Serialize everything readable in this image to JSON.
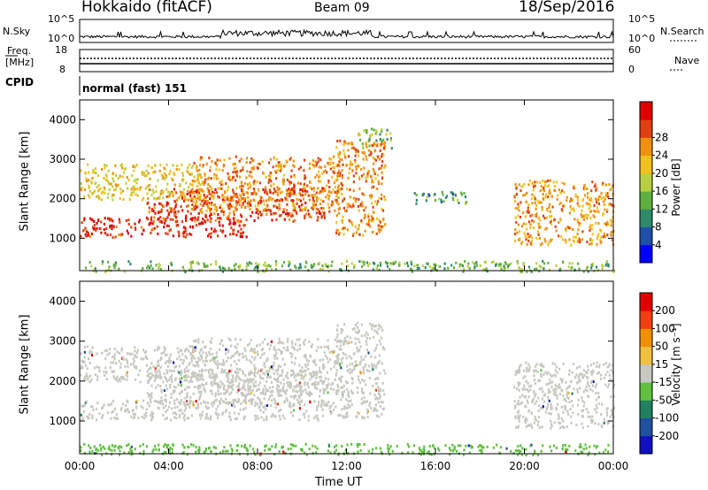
{
  "header": {
    "station": "Hokkaido (fitACF)",
    "beam": "Beam 09",
    "date": "18/Sep/2016"
  },
  "status_panels": {
    "nsky_label": "N.Sky",
    "nsearch_label": "N.Search",
    "nsky_ticks": [
      "10^5",
      "10^0"
    ],
    "nsky_right_ticks": [
      "10^5",
      "10^0"
    ],
    "freq_label_1": "Freq.",
    "freq_label_2": "[MHz]",
    "freq_ticks": [
      "18",
      "8"
    ],
    "nave_label": "Nave",
    "nave_ticks": [
      "60",
      "0"
    ],
    "cpid_label": "CPID",
    "cpid_value": "normal (fast) 151"
  },
  "colorbars": {
    "power": {
      "label": "Power [dB]",
      "ticks": [
        "4",
        "8",
        "12",
        "16",
        "20",
        "24",
        "28"
      ],
      "colors": [
        "#0000ff",
        "#1f4fa8",
        "#2e8a6a",
        "#60b040",
        "#b8d040",
        "#f0c020",
        "#f09010",
        "#e04010",
        "#e00000"
      ]
    },
    "velocity": {
      "label": "Velocity [m s⁻¹]",
      "ticks": [
        "200",
        "100",
        "50",
        "15",
        "-15",
        "-50",
        "-100",
        "-200"
      ],
      "colors": [
        "#1010c0",
        "#2050a0",
        "#208060",
        "#60c040",
        "#c8c8c0",
        "#f0c040",
        "#f09000",
        "#f04010",
        "#e00000"
      ]
    }
  },
  "chart_data": [
    {
      "type": "heatmap",
      "name": "power",
      "xlabel": "",
      "ylabel": "Slant Range [km]",
      "x_ticks": [
        "00:00",
        "04:00",
        "08:00",
        "12:00",
        "16:00",
        "20:00",
        "00:00"
      ],
      "y_ticks": [
        1000,
        2000,
        3000,
        4000
      ],
      "xlim": [
        0,
        24
      ],
      "ylim": [
        180,
        4500
      ],
      "colorbar_range": [
        0,
        30
      ],
      "regions": [
        {
          "t0": 0.0,
          "t1": 7.5,
          "r0": 1050,
          "r1": 1550,
          "level": 27
        },
        {
          "t0": 3.0,
          "t1": 11.0,
          "r0": 1450,
          "r1": 2300,
          "level": 25
        },
        {
          "t0": 5.0,
          "t1": 11.8,
          "r0": 1700,
          "r1": 3100,
          "level": 22
        },
        {
          "t0": 0.0,
          "t1": 5.5,
          "r0": 2000,
          "r1": 2900,
          "level": 18
        },
        {
          "t0": 11.5,
          "t1": 13.7,
          "r0": 1100,
          "r1": 3500,
          "level": 22
        },
        {
          "t0": 12.5,
          "t1": 14.0,
          "r0": 3300,
          "r1": 3800,
          "level": 13
        },
        {
          "t0": 19.5,
          "t1": 24.0,
          "r0": 850,
          "r1": 2500,
          "level": 21
        },
        {
          "t0": 15.0,
          "t1": 17.5,
          "r0": 1900,
          "r1": 2200,
          "level": 10
        },
        {
          "t0": 0.0,
          "t1": 24.0,
          "r0": 180,
          "r1": 450,
          "level": 12
        }
      ]
    },
    {
      "type": "heatmap",
      "name": "velocity",
      "xlabel": "Time UT",
      "ylabel": "Slant Range [km]",
      "x_ticks": [
        "00:00",
        "04:00",
        "08:00",
        "12:00",
        "16:00",
        "20:00",
        "00:00"
      ],
      "y_ticks": [
        1000,
        2000,
        3000,
        4000
      ],
      "xlim": [
        0,
        24
      ],
      "ylim": [
        180,
        4500
      ],
      "colorbar_range": [
        -200,
        200
      ],
      "regions": [
        {
          "t0": 0.0,
          "t1": 11.5,
          "r0": 1050,
          "r1": 1550,
          "level": 0
        },
        {
          "t0": 3.0,
          "t1": 11.0,
          "r0": 1450,
          "r1": 2300,
          "level": -5
        },
        {
          "t0": 5.0,
          "t1": 11.8,
          "r0": 1700,
          "r1": 3100,
          "level": 5
        },
        {
          "t0": 0.0,
          "t1": 5.5,
          "r0": 2000,
          "r1": 2900,
          "level": 0
        },
        {
          "t0": 11.5,
          "t1": 13.7,
          "r0": 1100,
          "r1": 3500,
          "level": 0
        },
        {
          "t0": 19.5,
          "t1": 24.0,
          "r0": 850,
          "r1": 2500,
          "level": 0
        },
        {
          "t0": 0.0,
          "t1": 24.0,
          "r0": 180,
          "r1": 450,
          "level": -40
        }
      ]
    }
  ]
}
